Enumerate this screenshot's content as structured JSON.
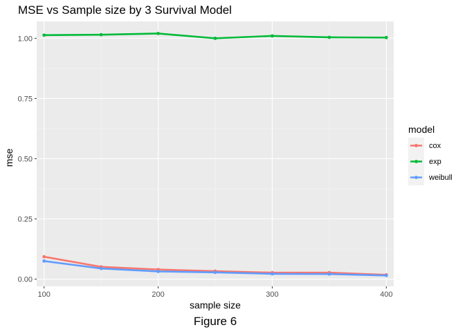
{
  "caption": "Figure 6",
  "chart_data": {
    "type": "line",
    "title": "MSE vs Sample size by 3 Survival Model",
    "xlabel": "sample size",
    "ylabel": "mse",
    "x": [
      100,
      150,
      200,
      250,
      300,
      350,
      400
    ],
    "xticks": [
      100,
      200,
      300,
      400
    ],
    "xtick_labels": [
      "100",
      "200",
      "300",
      "400"
    ],
    "yticks": [
      0,
      0.25,
      0.5,
      0.75,
      1.0
    ],
    "ytick_labels": [
      "0.00",
      "0.25",
      "0.50",
      "0.75",
      "1.00"
    ],
    "xlim": [
      93.5,
      406.5
    ],
    "ylim": [
      -0.03,
      1.07
    ],
    "grid": true,
    "legend_title": "model",
    "legend_position": "right",
    "series": [
      {
        "name": "cox",
        "color": "#F8766D",
        "values": [
          0.093,
          0.051,
          0.04,
          0.033,
          0.027,
          0.027,
          0.018
        ]
      },
      {
        "name": "exp",
        "color": "#00BA38",
        "values": [
          1.013,
          1.015,
          1.02,
          1.0,
          1.01,
          1.004,
          1.003
        ]
      },
      {
        "name": "weibull",
        "color": "#619CFF",
        "values": [
          0.075,
          0.044,
          0.032,
          0.028,
          0.022,
          0.021,
          0.015
        ]
      }
    ]
  }
}
